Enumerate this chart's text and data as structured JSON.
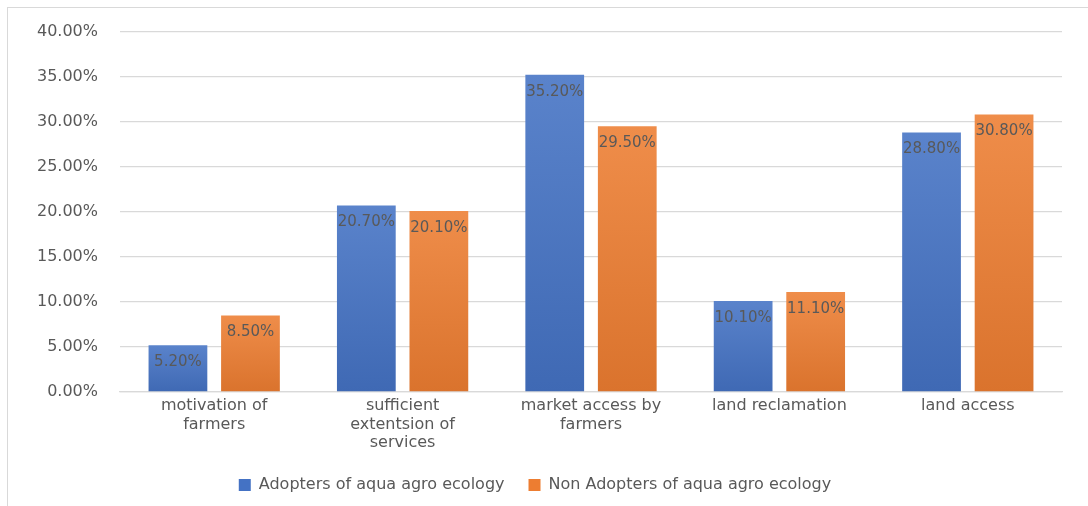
{
  "chart_data": {
    "type": "bar",
    "categories": [
      "motivation of farmers",
      "sufficient extentsion of services",
      "market access by farmers",
      "land reclamation",
      "land access"
    ],
    "series": [
      {
        "name": "Adopters of aqua agro ecology",
        "color": "#4472c4",
        "values": [
          5.2,
          20.7,
          35.2,
          10.1,
          28.8
        ],
        "value_labels": [
          "5.20%",
          "20.70%",
          "35.20%",
          "10.10%",
          "28.80%"
        ]
      },
      {
        "name": "Non Adopters of aqua agro ecology",
        "color": "#ed7d31",
        "values": [
          8.5,
          20.1,
          29.5,
          11.1,
          30.8
        ],
        "value_labels": [
          "8.50%",
          "20.10%",
          "29.50%",
          "11.10%",
          "30.80%"
        ]
      }
    ],
    "ylim": [
      0,
      40
    ],
    "yticks": [
      {
        "value": 0,
        "label": "0.00%"
      },
      {
        "value": 5,
        "label": "5.00%"
      },
      {
        "value": 10,
        "label": "10.00%"
      },
      {
        "value": 15,
        "label": "15.00%"
      },
      {
        "value": 20,
        "label": "20.00%"
      },
      {
        "value": 25,
        "label": "25.00%"
      },
      {
        "value": 30,
        "label": "30.00%"
      },
      {
        "value": 35,
        "label": "35.00%"
      },
      {
        "value": 40,
        "label": "40.00%"
      }
    ],
    "grid": "y",
    "legend": "bottom"
  }
}
